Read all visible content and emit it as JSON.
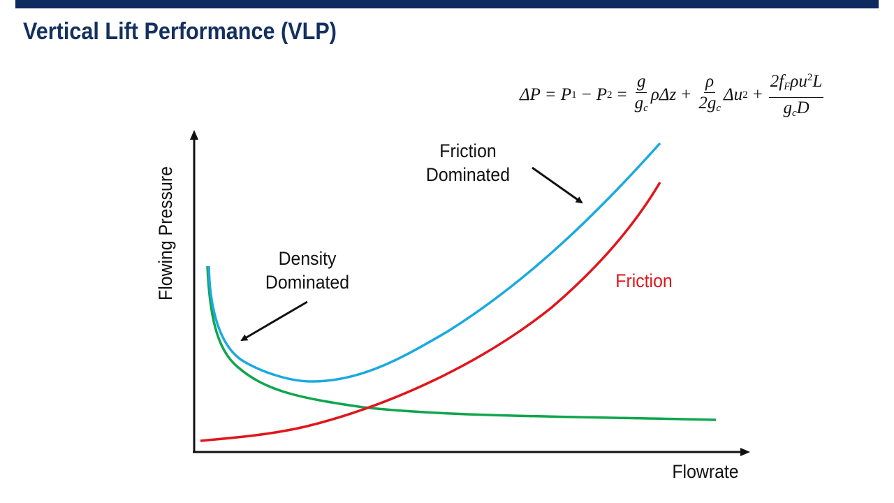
{
  "slide": {
    "title": "Vertical Lift Performance (VLP)",
    "header_bar_color": "#0c2a5e",
    "title_color": "#13305f"
  },
  "equation": {
    "lhs": "ΔP = P",
    "p1_sub": "1",
    "minus": "−",
    "p2": "P",
    "p2_sub": "2",
    "eq": "=",
    "t1_num": "g",
    "t1_den": "g",
    "t1_den_sub": "c",
    "t1_tail": "ρΔz",
    "plus1": "+",
    "t2_num": "ρ",
    "t2_den": "2g",
    "t2_den_sub": "c",
    "t2_tail": "Δu",
    "t2_tail_sup": "2",
    "plus2": "+",
    "t3_num_a": "2f",
    "t3_num_sub": "F",
    "t3_num_b": "ρu",
    "t3_num_sup": "2",
    "t3_num_c": "L",
    "t3_den_a": "g",
    "t3_den_sub": "c",
    "t3_den_b": "D"
  },
  "axes": {
    "x_label": "Flowrate",
    "y_label": "Flowing Pressure"
  },
  "annotations": {
    "friction_dominated": [
      "Friction",
      "Dominated"
    ],
    "density_dominated": [
      "Density",
      "Dominated"
    ],
    "friction_curve_label": "Friction"
  },
  "colors": {
    "total_curve": "#1ba9e0",
    "density_curve": "#0fa64d",
    "friction_curve": "#e0161c",
    "friction_label": "#e0161c",
    "axis": "#111111"
  }
}
